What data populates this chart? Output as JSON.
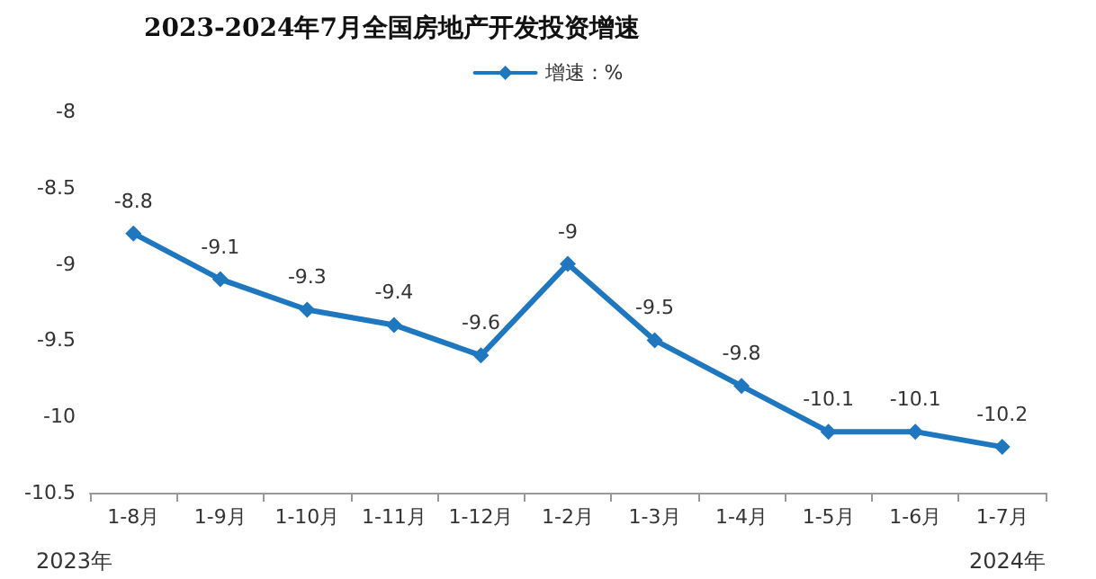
{
  "chart_data": {
    "type": "line",
    "title": "2023-2024年7月全国房地产开发投资增速",
    "categories": [
      "1-8月",
      "1-9月",
      "1-10月",
      "1-11月",
      "1-12月",
      "1-2月",
      "1-3月",
      "1-4月",
      "1-5月",
      "1-6月",
      "1-7月"
    ],
    "series": [
      {
        "name": "增速：%",
        "color": "#1f77c0",
        "values": [
          -8.8,
          -9.1,
          -9.3,
          -9.4,
          -9.6,
          -9,
          -9.5,
          -9.8,
          -10.1,
          -10.1,
          -10.2
        ]
      }
    ],
    "ylim": [
      -10.5,
      -8
    ],
    "yticks": [
      -10.5,
      -10,
      -9.5,
      -9,
      -8.5,
      -8
    ],
    "annotations": [
      "2023年",
      "2024年"
    ],
    "data_labels": true,
    "grid": false,
    "legend": "top",
    "marker": "diamond",
    "line_style": "solid"
  }
}
